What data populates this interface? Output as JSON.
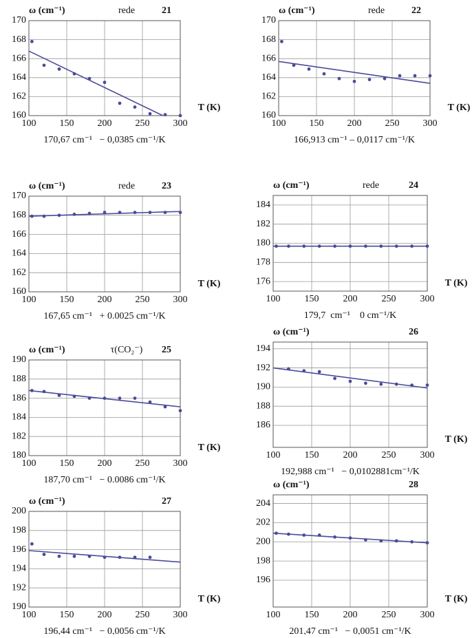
{
  "chart_data": [
    {
      "type": "scatter",
      "title": "21",
      "subtitle": "rede",
      "ylabel": "ω (cm⁻¹)",
      "xlabel": "T (K)",
      "caption": "170,67 cm⁻¹   − 0,0385 cm⁻¹/K",
      "color": "#4a4a9a",
      "xlim": [
        100,
        300
      ],
      "xticks": [
        100,
        150,
        200,
        250,
        300
      ],
      "ylim": [
        160,
        170
      ],
      "yticks": [
        160,
        162,
        164,
        166,
        168,
        170
      ],
      "grid": true,
      "x": [
        104,
        120,
        140,
        160,
        180,
        200,
        220,
        240,
        260,
        280,
        300
      ],
      "values": [
        167.8,
        165.3,
        164.9,
        164.4,
        163.9,
        163.5,
        161.3,
        160.9,
        160.2,
        160.1,
        160.0
      ],
      "fit": {
        "x": [
          100,
          277
        ],
        "values": [
          166.8,
          160
        ]
      }
    },
    {
      "type": "scatter",
      "title": "22",
      "subtitle": "rede",
      "ylabel": "ω (cm⁻¹)",
      "xlabel": "T (K)",
      "caption": "166,913 cm⁻¹ – 0,0117 cm⁻¹/K",
      "color": "#4a4a9a",
      "xlim": [
        100,
        300
      ],
      "xticks": [
        100,
        150,
        200,
        250,
        300
      ],
      "ylim": [
        160,
        170
      ],
      "yticks": [
        160,
        162,
        164,
        166,
        168,
        170
      ],
      "grid": true,
      "x": [
        104,
        120,
        140,
        160,
        180,
        200,
        220,
        240,
        260,
        280,
        300
      ],
      "values": [
        167.8,
        165.3,
        164.9,
        164.4,
        163.9,
        163.6,
        163.8,
        163.9,
        164.2,
        164.2,
        164.2
      ],
      "fit": {
        "x": [
          100,
          300
        ],
        "values": [
          165.7,
          163.4
        ]
      }
    },
    {
      "type": "scatter",
      "title": "23",
      "subtitle": "rede",
      "ylabel": "ω (cm⁻¹)",
      "xlabel": "T (K)",
      "caption": "167,65 cm⁻¹   + 0.0025 cm⁻¹/K",
      "color": "#4a4a9a",
      "xlim": [
        100,
        300
      ],
      "xticks": [
        100,
        150,
        200,
        250,
        300
      ],
      "ylim": [
        160,
        170
      ],
      "yticks": [
        160,
        162,
        164,
        166,
        168,
        170
      ],
      "grid": true,
      "x": [
        104,
        120,
        140,
        160,
        180,
        200,
        220,
        240,
        260,
        280,
        300
      ],
      "values": [
        167.9,
        167.9,
        168.0,
        168.1,
        168.2,
        168.3,
        168.3,
        168.3,
        168.3,
        168.3,
        168.3
      ],
      "fit": {
        "x": [
          100,
          300
        ],
        "values": [
          167.9,
          168.4
        ]
      }
    },
    {
      "type": "scatter",
      "title": "24",
      "subtitle": "rede",
      "ylabel": "ω (cm⁻¹)",
      "xlabel": "T (K)",
      "caption": "179,7  cm⁻¹    0 cm⁻¹/K",
      "color": "#4a4a9a",
      "xlim": [
        100,
        300
      ],
      "xticks": [
        100,
        150,
        200,
        250,
        300
      ],
      "ylim": [
        175,
        185
      ],
      "yticks": [
        176,
        178,
        180,
        182,
        184
      ],
      "grid": true,
      "x": [
        104,
        120,
        140,
        160,
        180,
        200,
        220,
        240,
        260,
        280,
        300
      ],
      "values": [
        179.7,
        179.7,
        179.7,
        179.7,
        179.7,
        179.7,
        179.7,
        179.7,
        179.7,
        179.7,
        179.7
      ],
      "fit": {
        "x": [
          100,
          300
        ],
        "values": [
          179.7,
          179.7
        ]
      }
    },
    {
      "type": "scatter",
      "title": "25",
      "subtitle": "τ(CO₂⁻)",
      "ylabel": "ω (cm⁻¹)",
      "xlabel": "T (K)",
      "caption": "187,70 cm⁻¹   − 0.0086 cm⁻¹/K",
      "color": "#4a4a9a",
      "xlim": [
        100,
        300
      ],
      "xticks": [
        100,
        150,
        200,
        250,
        300
      ],
      "ylim": [
        180,
        190
      ],
      "yticks": [
        180,
        182,
        184,
        186,
        188,
        190
      ],
      "grid": true,
      "x": [
        104,
        120,
        140,
        160,
        180,
        200,
        220,
        240,
        260,
        280,
        300
      ],
      "values": [
        186.8,
        186.7,
        186.3,
        186.2,
        186.0,
        186.0,
        186.0,
        186.0,
        185.6,
        185.1,
        184.7
      ],
      "fit": {
        "x": [
          100,
          300
        ],
        "values": [
          186.8,
          185.1
        ]
      }
    },
    {
      "type": "scatter",
      "title": "26",
      "ylabel": "ω (cm⁻¹)",
      "xlabel": "T (K)",
      "caption": "192,988 cm⁻¹   − 0,0102881cm⁻¹/K",
      "color": "#4a4a9a",
      "xlim": [
        100,
        300
      ],
      "xticks": [
        100,
        150,
        200,
        250,
        300
      ],
      "ylim": [
        183.7,
        194.7
      ],
      "yticks": [
        186,
        188,
        190,
        192,
        194
      ],
      "grid": true,
      "x": [
        120,
        140,
        160,
        180,
        200,
        220,
        240,
        260,
        280,
        300
      ],
      "values": [
        191.9,
        191.7,
        191.6,
        190.9,
        190.6,
        190.4,
        190.3,
        190.3,
        190.2,
        190.2
      ],
      "fit": {
        "x": [
          100,
          300
        ],
        "values": [
          192.0,
          189.9
        ]
      }
    },
    {
      "type": "scatter",
      "title": "27",
      "ylabel": "ω (cm⁻¹)",
      "xlabel": "T (K)",
      "caption": "196,44 cm⁻¹   − 0,0056 cm⁻¹/K",
      "color": "#4a4a9a",
      "xlim": [
        100,
        300
      ],
      "xticks": [
        100,
        150,
        200,
        250,
        300
      ],
      "ylim": [
        190,
        200
      ],
      "yticks": [
        190,
        192,
        194,
        196,
        198,
        200
      ],
      "grid": true,
      "x": [
        104,
        120,
        140,
        160,
        180,
        200,
        220,
        240,
        260
      ],
      "values": [
        196.6,
        195.5,
        195.3,
        195.3,
        195.3,
        195.2,
        195.2,
        195.2,
        195.2
      ],
      "fit": {
        "x": [
          100,
          300
        ],
        "values": [
          195.9,
          194.7
        ]
      }
    },
    {
      "type": "scatter",
      "title": "28",
      "ylabel": "ω (cm⁻¹)",
      "xlabel": "T (K)",
      "caption": "201,47 cm⁻¹   − 0,0051 cm⁻¹/K",
      "color": "#4a4a9a",
      "xlim": [
        100,
        300
      ],
      "xticks": [
        100,
        150,
        200,
        250,
        300
      ],
      "ylim": [
        193.2,
        204.9
      ],
      "yticks": [
        196,
        198,
        200,
        202,
        204
      ],
      "grid": true,
      "x": [
        104,
        120,
        140,
        160,
        180,
        200,
        220,
        240,
        260,
        280,
        300
      ],
      "values": [
        200.9,
        200.8,
        200.7,
        200.7,
        200.5,
        200.4,
        200.2,
        200.1,
        200.1,
        200.0,
        199.9
      ],
      "fit": {
        "x": [
          100,
          300
        ],
        "values": [
          200.9,
          199.9
        ]
      }
    }
  ]
}
